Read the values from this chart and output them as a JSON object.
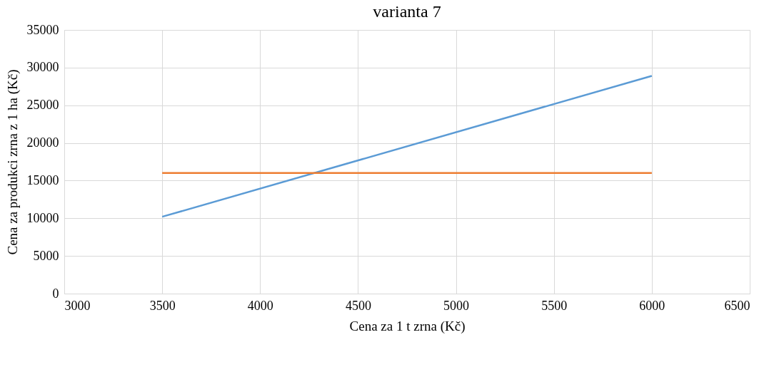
{
  "chart_data": {
    "type": "line",
    "title": "varianta 7",
    "xlabel": "Cena za 1 t zrna (Kč)",
    "ylabel": "Cena za produkci zrna z 1 ha (Kč)",
    "xlim": [
      3000,
      6500
    ],
    "xticks": [
      3000,
      3500,
      4000,
      4500,
      5000,
      5500,
      6000,
      6500
    ],
    "ylim": [
      0,
      35000
    ],
    "yticks": [
      0,
      5000,
      10000,
      15000,
      20000,
      25000,
      30000,
      35000
    ],
    "x": [
      3500,
      6000
    ],
    "grid": true,
    "legend": false,
    "marker": "none",
    "line_style": "solid",
    "series": [
      {
        "color": "#5b9bd5",
        "values": [
          10200,
          28900
        ]
      },
      {
        "color": "#ed7d31",
        "values": [
          16000,
          16000
        ]
      }
    ]
  }
}
